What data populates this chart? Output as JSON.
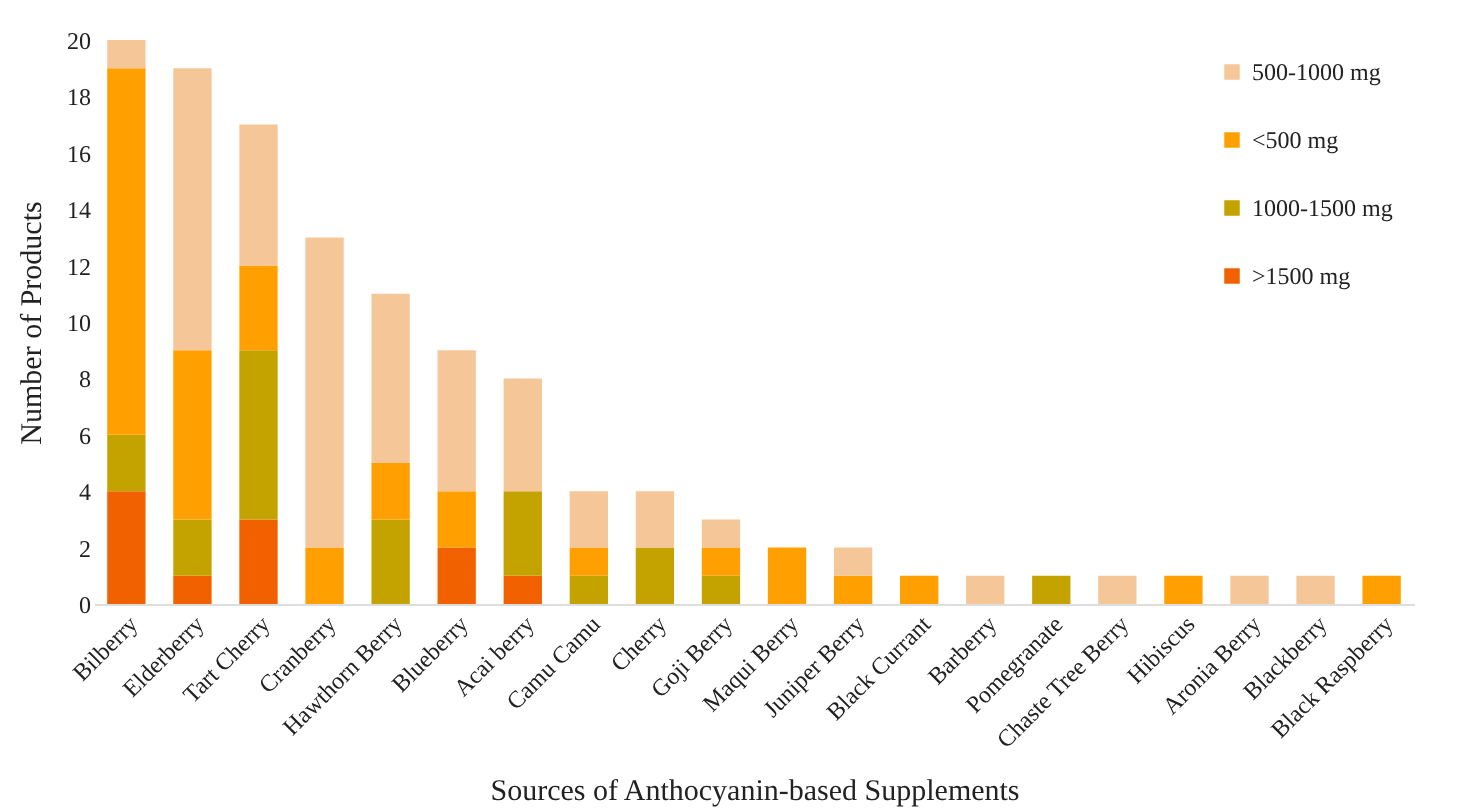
{
  "chart_data": {
    "type": "bar",
    "stacked": true,
    "xlabel": "Sources of Anthocyanin-based Supplements",
    "ylabel": "Number of Products",
    "categories": [
      "Bilberry",
      "Elderberry",
      "Tart Cherry",
      "Cranberry",
      "Hawthorn Berry",
      "Blueberry",
      "Acai berry",
      "Camu Camu",
      "Cherry",
      "Goji Berry",
      "Maqui Berry",
      "Juniper Berry",
      "Black Currant",
      "Barberry",
      "Pomegranate",
      "Chaste Tree Berry",
      "Hibiscus",
      "Aronia Berry",
      "Blackberry",
      "Black Raspberry"
    ],
    "series": [
      {
        "name": ">1500 mg",
        "color": "#f26100",
        "values": [
          4,
          1,
          3,
          0,
          0,
          2,
          1,
          0,
          0,
          0,
          0,
          0,
          0,
          0,
          0,
          0,
          0,
          0,
          0,
          0
        ]
      },
      {
        "name": "1000-1500 mg",
        "color": "#c4a300",
        "values": [
          2,
          2,
          6,
          0,
          3,
          0,
          3,
          1,
          2,
          1,
          0,
          0,
          0,
          0,
          1,
          0,
          0,
          0,
          0,
          0
        ]
      },
      {
        "name": "<500 mg",
        "color": "#ffa000",
        "values": [
          13,
          6,
          3,
          2,
          2,
          2,
          0,
          1,
          0,
          1,
          2,
          1,
          1,
          0,
          0,
          0,
          1,
          0,
          0,
          1
        ]
      },
      {
        "name": "500-1000 mg",
        "color": "#f5c698",
        "values": [
          1,
          10,
          5,
          11,
          6,
          5,
          4,
          2,
          2,
          1,
          0,
          1,
          0,
          1,
          0,
          1,
          0,
          1,
          1,
          0
        ]
      }
    ],
    "ylim": [
      0,
      20
    ],
    "yticks": [
      0,
      2,
      4,
      6,
      8,
      10,
      12,
      14,
      16,
      18,
      20
    ],
    "grid": false,
    "legend": "top right"
  }
}
